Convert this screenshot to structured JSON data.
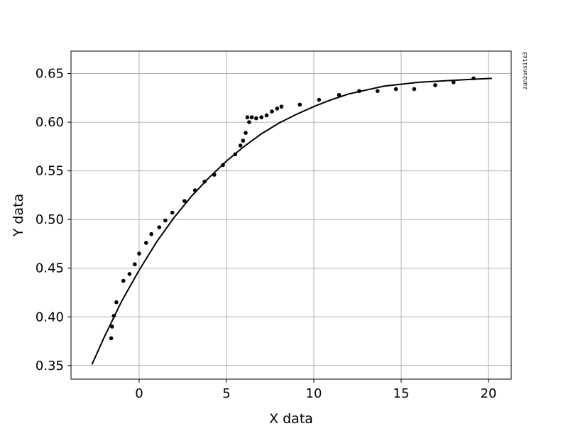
{
  "chart_data": {
    "type": "scatter",
    "title": "",
    "xlabel": "X data",
    "ylabel": "Y data",
    "xlim": [
      -3.9,
      21.3
    ],
    "ylim": [
      0.336,
      0.673
    ],
    "grid": true,
    "watermark": "zunzunsite3",
    "xticks": [
      {
        "value": 0,
        "label": "0"
      },
      {
        "value": 5,
        "label": "5"
      },
      {
        "value": 10,
        "label": "10"
      },
      {
        "value": 15,
        "label": "15"
      },
      {
        "value": 20,
        "label": "20"
      }
    ],
    "yticks": [
      {
        "value": 0.35,
        "label": "0.35"
      },
      {
        "value": 0.4,
        "label": "0.40"
      },
      {
        "value": 0.45,
        "label": "0.45"
      },
      {
        "value": 0.5,
        "label": "0.50"
      },
      {
        "value": 0.55,
        "label": "0.55"
      },
      {
        "value": 0.6,
        "label": "0.60"
      },
      {
        "value": 0.65,
        "label": "0.65"
      }
    ],
    "series": [
      {
        "kind": "points",
        "color": "#000000",
        "points": [
          {
            "x": -1.6,
            "y": 0.378
          },
          {
            "x": -1.55,
            "y": 0.39
          },
          {
            "x": -1.45,
            "y": 0.401
          },
          {
            "x": -1.3,
            "y": 0.415
          },
          {
            "x": -0.9,
            "y": 0.437
          },
          {
            "x": -0.55,
            "y": 0.444
          },
          {
            "x": -0.25,
            "y": 0.454
          },
          {
            "x": 0.0,
            "y": 0.465
          },
          {
            "x": 0.4,
            "y": 0.476
          },
          {
            "x": 0.7,
            "y": 0.485
          },
          {
            "x": 1.15,
            "y": 0.492
          },
          {
            "x": 1.5,
            "y": 0.499
          },
          {
            "x": 1.9,
            "y": 0.507
          },
          {
            "x": 2.6,
            "y": 0.519
          },
          {
            "x": 3.2,
            "y": 0.53
          },
          {
            "x": 3.75,
            "y": 0.539
          },
          {
            "x": 4.3,
            "y": 0.546
          },
          {
            "x": 4.8,
            "y": 0.556
          },
          {
            "x": 5.5,
            "y": 0.567
          },
          {
            "x": 5.8,
            "y": 0.576
          },
          {
            "x": 5.95,
            "y": 0.581
          },
          {
            "x": 6.1,
            "y": 0.589
          },
          {
            "x": 6.2,
            "y": 0.605
          },
          {
            "x": 6.3,
            "y": 0.6
          },
          {
            "x": 6.45,
            "y": 0.605
          },
          {
            "x": 6.7,
            "y": 0.604
          },
          {
            "x": 7.0,
            "y": 0.605
          },
          {
            "x": 7.3,
            "y": 0.607
          },
          {
            "x": 7.6,
            "y": 0.611
          },
          {
            "x": 7.9,
            "y": 0.614
          },
          {
            "x": 8.15,
            "y": 0.616
          },
          {
            "x": 9.2,
            "y": 0.618
          },
          {
            "x": 10.3,
            "y": 0.623
          },
          {
            "x": 11.45,
            "y": 0.628
          },
          {
            "x": 12.6,
            "y": 0.632
          },
          {
            "x": 13.65,
            "y": 0.632
          },
          {
            "x": 14.7,
            "y": 0.634
          },
          {
            "x": 15.75,
            "y": 0.634
          },
          {
            "x": 16.95,
            "y": 0.638
          },
          {
            "x": 18.0,
            "y": 0.641
          },
          {
            "x": 19.15,
            "y": 0.645
          }
        ]
      },
      {
        "kind": "line",
        "color": "#000000",
        "points": [
          {
            "x": -2.7,
            "y": 0.351
          },
          {
            "x": -2.0,
            "y": 0.379
          },
          {
            "x": -1.0,
            "y": 0.416
          },
          {
            "x": 0.0,
            "y": 0.448
          },
          {
            "x": 1.0,
            "y": 0.477
          },
          {
            "x": 2.0,
            "y": 0.502
          },
          {
            "x": 3.0,
            "y": 0.524
          },
          {
            "x": 4.0,
            "y": 0.543
          },
          {
            "x": 5.0,
            "y": 0.56
          },
          {
            "x": 6.0,
            "y": 0.575
          },
          {
            "x": 7.0,
            "y": 0.588
          },
          {
            "x": 8.0,
            "y": 0.599
          },
          {
            "x": 9.0,
            "y": 0.608
          },
          {
            "x": 10.0,
            "y": 0.616
          },
          {
            "x": 11.0,
            "y": 0.623
          },
          {
            "x": 12.0,
            "y": 0.629
          },
          {
            "x": 13.0,
            "y": 0.633
          },
          {
            "x": 14.0,
            "y": 0.637
          },
          {
            "x": 15.0,
            "y": 0.639
          },
          {
            "x": 16.0,
            "y": 0.641
          },
          {
            "x": 17.0,
            "y": 0.642
          },
          {
            "x": 18.0,
            "y": 0.643
          },
          {
            "x": 19.0,
            "y": 0.644
          },
          {
            "x": 20.2,
            "y": 0.645
          }
        ]
      }
    ]
  }
}
